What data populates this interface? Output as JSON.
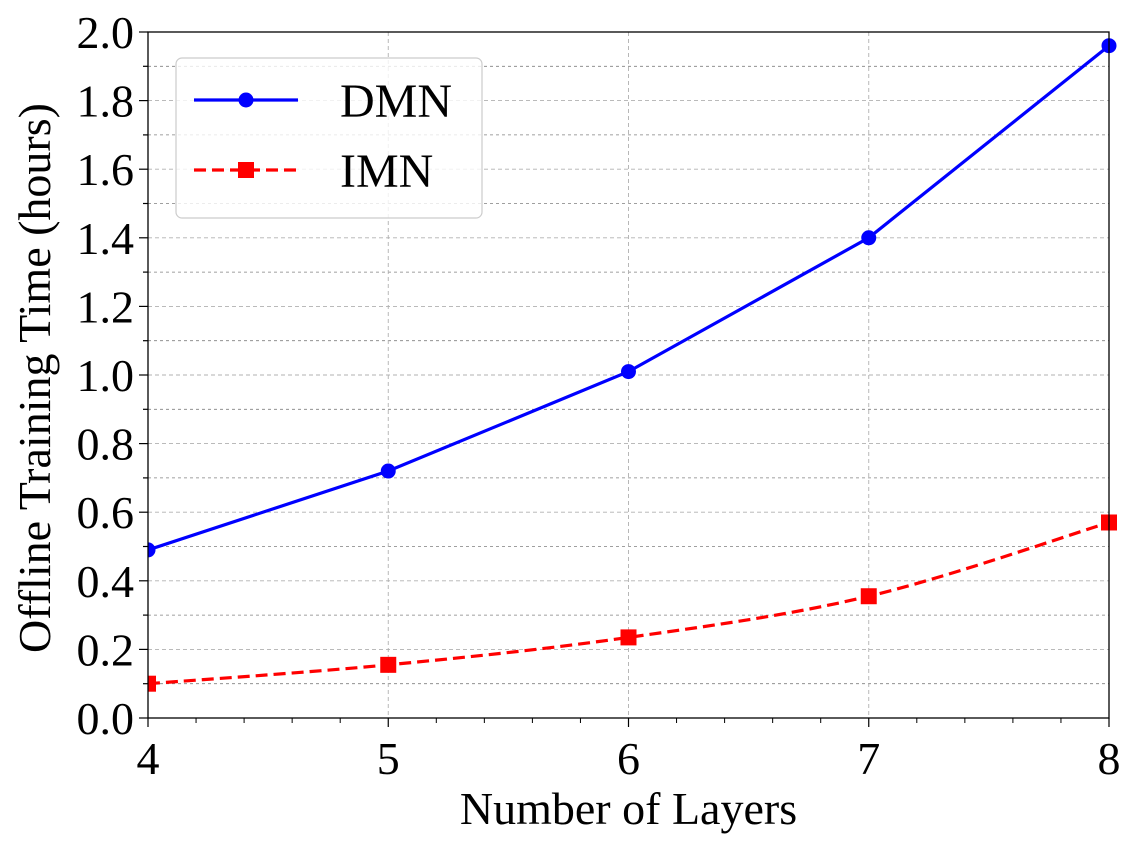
{
  "chart_data": {
    "type": "line",
    "title": "",
    "xlabel": "Number of Layers",
    "ylabel": "Offline Training Time (hours)",
    "x": [
      4,
      5,
      6,
      7,
      8
    ],
    "xlim": [
      4,
      8
    ],
    "ylim": [
      0.0,
      2.0
    ],
    "xticks": [
      "4",
      "5",
      "6",
      "7",
      "8"
    ],
    "yticks": [
      "0.0",
      "0.2",
      "0.4",
      "0.6",
      "0.8",
      "1.0",
      "1.2",
      "1.4",
      "1.6",
      "1.8",
      "2.0"
    ],
    "grid": true,
    "legend_position": "top-left",
    "series": [
      {
        "name": "DMN",
        "values": [
          0.49,
          0.72,
          1.01,
          1.4,
          1.96
        ],
        "color": "#0000ff",
        "line_style": "solid",
        "marker": "circle"
      },
      {
        "name": "IMN",
        "values": [
          0.1,
          0.155,
          0.235,
          0.355,
          0.57
        ],
        "color": "#ff0000",
        "line_style": "dashed",
        "marker": "square",
        "smooth": true
      }
    ]
  }
}
